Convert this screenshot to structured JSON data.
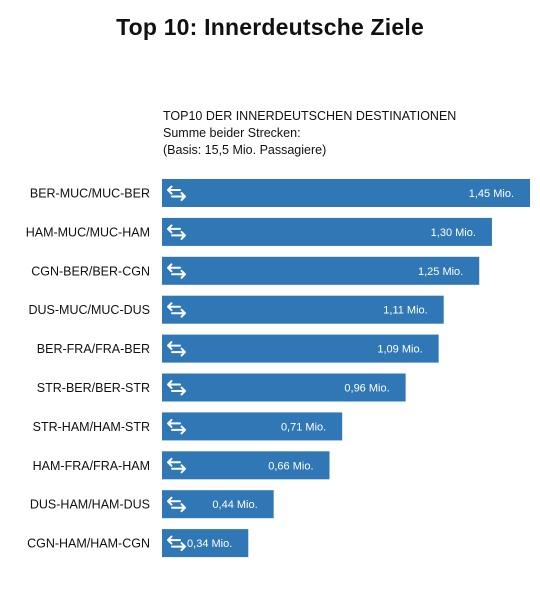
{
  "header": {
    "title": "Top 10: Innerdeutsche Ziele",
    "subtitle_line1": "TOP10 DER INNERDEUTSCHEN DESTINATIONEN",
    "subtitle_line2": "Summe beider Strecken:",
    "subtitle_line3": "(Basis: 15,5 Mio. Passagiere)"
  },
  "colors": {
    "bar": "#2f77b5",
    "icon": "#ffffff"
  },
  "icon": "bidirectional-arrows-icon",
  "chart_data": {
    "type": "bar",
    "orientation": "horizontal",
    "title": "Top 10: Innerdeutsche Ziele",
    "categories": [
      "BER-MUC/MUC-BER",
      "HAM-MUC/MUC-HAM",
      "CGN-BER/BER-CGN",
      "DUS-MUC/MUC-DUS",
      "BER-FRA/FRA-BER",
      "STR-BER/BER-STR",
      "STR-HAM/HAM-STR",
      "HAM-FRA/FRA-HAM",
      "DUS-HAM/HAM-DUS",
      "CGN-HAM/HAM-CGN"
    ],
    "values": [
      1.45,
      1.3,
      1.25,
      1.11,
      1.09,
      0.96,
      0.71,
      0.66,
      0.44,
      0.34
    ],
    "value_labels": [
      "1,45 Mio.",
      "1,30 Mio.",
      "1,25 Mio.",
      "1,11 Mio.",
      "1,09 Mio.",
      "0,96 Mio.",
      "0,71 Mio.",
      "0,66 Mio.",
      "0,44 Mio.",
      "0,34 Mio."
    ],
    "unit": "Mio.",
    "xlim": [
      0,
      1.45
    ],
    "grid": false,
    "legend": "none"
  }
}
